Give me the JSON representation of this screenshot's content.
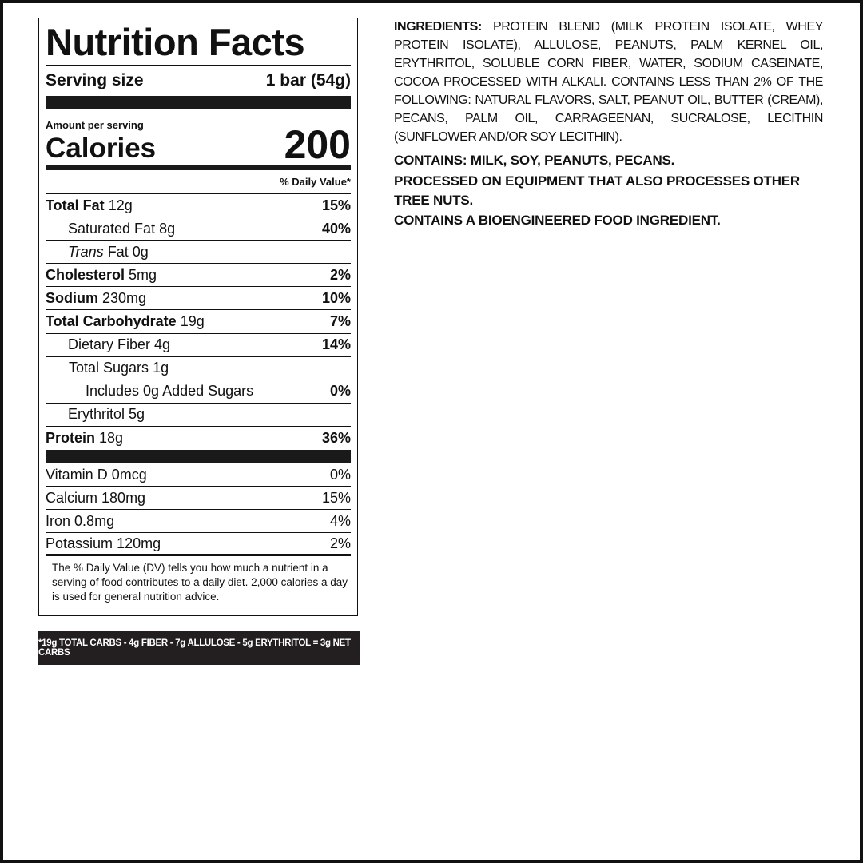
{
  "label": {
    "title": "Nutrition Facts",
    "serving_size_label": "Serving size",
    "serving_size_value": "1 bar (54g)",
    "amount_per_serving": "Amount per serving",
    "calories_label": "Calories",
    "calories_value": "200",
    "dv_header": "% Daily Value*",
    "nutrients": [
      {
        "name": "Total Fat",
        "amount": "12g",
        "dv": "15%"
      },
      {
        "name": "Saturated Fat",
        "amount": "8g",
        "dv": "40%"
      },
      {
        "name": "Trans",
        "name_suffix": "Fat",
        "amount": "0g",
        "dv": ""
      },
      {
        "name": "Cholesterol",
        "amount": "5mg",
        "dv": "2%"
      },
      {
        "name": "Sodium",
        "amount": "230mg",
        "dv": "10%"
      },
      {
        "name": "Total Carbohydrate",
        "amount": "19g",
        "dv": "7%"
      },
      {
        "name": "Dietary Fiber",
        "amount": "4g",
        "dv": "14%"
      },
      {
        "name": "Total Sugars",
        "amount": "1g",
        "dv": ""
      },
      {
        "name": "Includes 0g Added Sugars",
        "amount": "",
        "dv": "0%"
      },
      {
        "name": "Erythritol",
        "amount": "5g",
        "dv": ""
      },
      {
        "name": "Protein",
        "amount": "18g",
        "dv": "36%"
      }
    ],
    "vitamins": [
      {
        "name": "Vitamin D",
        "amount": "0mcg",
        "dv": "0%"
      },
      {
        "name": "Calcium",
        "amount": "180mg",
        "dv": "15%"
      },
      {
        "name": "Iron",
        "amount": "0.8mg",
        "dv": "4%"
      },
      {
        "name": "Potassium",
        "amount": "120mg",
        "dv": "2%"
      }
    ],
    "footnote": "The % Daily Value (DV) tells you how much a nutrient in a serving of food contributes to a daily diet. 2,000 calories a day is used for general nutrition advice."
  },
  "net_carbs_note": "*19g TOTAL CARBS - 4g FIBER - 7g ALLULOSE - 5g ERYTHRITOL = 3g NET CARBS",
  "ingredients": {
    "heading": "INGREDIENTS:",
    "text": "PROTEIN BLEND (MILK PROTEIN ISOLATE, WHEY PROTEIN ISOLATE), ALLULOSE, PEANUTS, PALM KERNEL OIL, ERYTHRITOL, SOLUBLE CORN FIBER, WATER, SODIUM CASEINATE, COCOA PROCESSED WITH ALKALI. CONTAINS LESS THAN 2% OF THE FOLLOWING: NATURAL FLAVORS, SALT, PEANUT OIL, BUTTER (CREAM), PECANS, PALM OIL, CARRAGEENAN, SUCRALOSE, LECITHIN (SUNFLOWER AND/OR SOY LECITHIN).",
    "contains": "CONTAINS: MILK, SOY, PEANUTS, PECANS.",
    "processed": "PROCESSED ON EQUIPMENT THAT ALSO PROCESSES OTHER TREE NUTS.",
    "bioengineered": "CONTAINS A BIOENGINEERED FOOD INGREDIENT."
  }
}
